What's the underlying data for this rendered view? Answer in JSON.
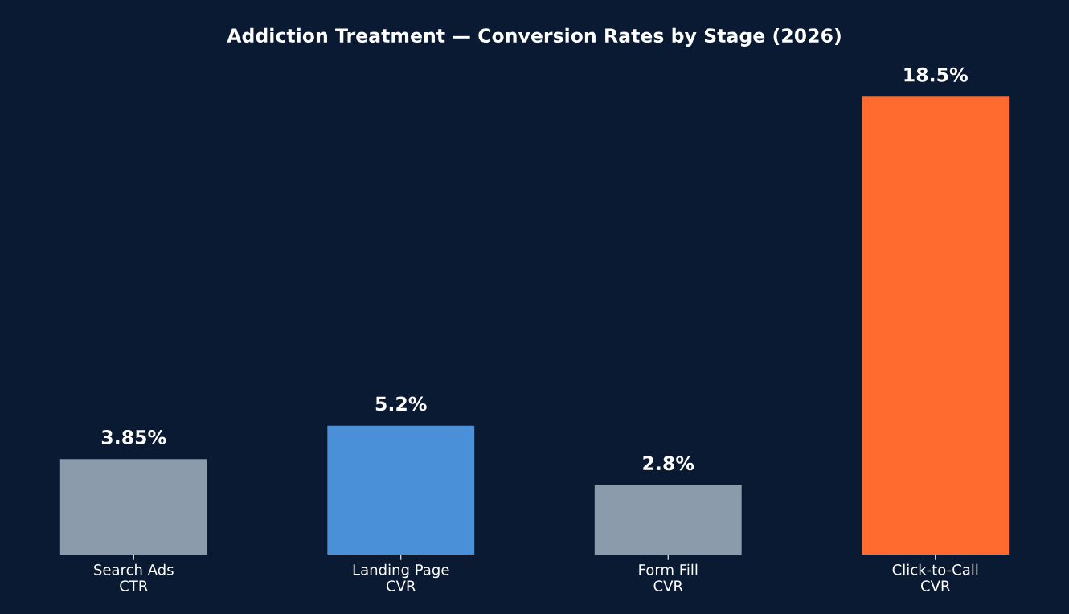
{
  "chart_data": {
    "type": "bar",
    "title": "Addiction Treatment — Conversion Rates by Stage (2026)",
    "categories": [
      "Search Ads\nCTR",
      "Landing Page\nCVR",
      "Form Fill\nCVR",
      "Click-to-Call\nCVR"
    ],
    "values": [
      3.85,
      5.2,
      2.8,
      18.5
    ],
    "colors": [
      "#8b9bab",
      "#4a90d9",
      "#8b9bab",
      "#ff6b2e"
    ],
    "value_labels": [
      "3.85%",
      "5.2%",
      "2.8%",
      "18.5%"
    ],
    "tick_labels": "x",
    "grid": false,
    "legend": false
  }
}
